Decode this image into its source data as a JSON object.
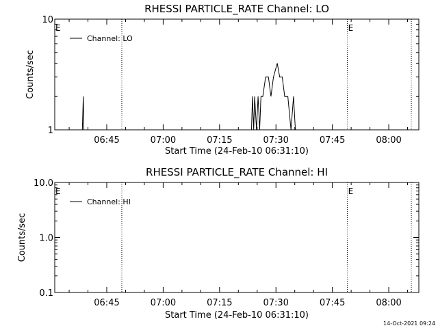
{
  "footer_timestamp": "14-Oct-2021 09:24",
  "colors": {
    "background": "#ffffff",
    "foreground": "#000000"
  },
  "chart_data": [
    {
      "type": "line",
      "title": "RHESSI PARTICLE_RATE Channel: LO",
      "xlabel": "Start Time (24-Feb-10 06:31:10)",
      "ylabel": "Counts/sec",
      "y_scale": "log",
      "ylim": [
        1,
        10
      ],
      "y_ticks": [
        1,
        10
      ],
      "y_tick_labels": [
        "1",
        "10"
      ],
      "x_range": [
        "06:31:10",
        "08:08:00"
      ],
      "x_ticks": [
        "06:45",
        "07:00",
        "07:15",
        "07:30",
        "07:45",
        "08:00"
      ],
      "legend": {
        "entries": [
          "Channel: LO"
        ],
        "position": "top-left"
      },
      "markers": [
        {
          "label": "E",
          "time": "06:31:10",
          "style": "text"
        },
        {
          "label": "",
          "time": "06:49:00",
          "style": "dotted"
        },
        {
          "label": "E",
          "time": "07:49:00",
          "style": "dotted"
        },
        {
          "label": "",
          "time": "08:06:00",
          "style": "dotted"
        }
      ],
      "series": [
        {
          "name": "Channel: LO",
          "x": [
            "06:38:30",
            "06:38:45",
            "06:38:55",
            "06:39:10",
            "07:23:30",
            "07:23:45",
            "07:24:05",
            "07:24:20",
            "07:24:50",
            "07:25:15",
            "07:25:40",
            "07:26:00",
            "07:26:30",
            "07:27:15",
            "07:28:00",
            "07:28:40",
            "07:29:20",
            "07:30:20",
            "07:31:00",
            "07:31:40",
            "07:32:20",
            "07:33:10",
            "07:34:00",
            "07:34:40",
            "07:35:10",
            "07:35:25"
          ],
          "y": [
            1,
            2,
            1,
            1,
            1,
            2,
            1,
            2,
            1,
            2,
            1,
            2,
            2,
            3,
            3,
            2,
            3,
            4,
            3,
            3,
            2,
            2,
            1,
            2,
            1,
            1
          ]
        }
      ]
    },
    {
      "type": "line",
      "title": "RHESSI PARTICLE_RATE Channel: HI",
      "xlabel": "Start Time (24-Feb-10 06:31:10)",
      "ylabel": "Counts/sec",
      "y_scale": "log",
      "ylim": [
        0.1,
        10
      ],
      "y_ticks": [
        0.1,
        1,
        10
      ],
      "y_tick_labels": [
        "0.1",
        "1.0",
        "10.0"
      ],
      "x_range": [
        "06:31:10",
        "08:08:00"
      ],
      "x_ticks": [
        "06:45",
        "07:00",
        "07:15",
        "07:30",
        "07:45",
        "08:00"
      ],
      "legend": {
        "entries": [
          "Channel: HI"
        ],
        "position": "top-left"
      },
      "markers": [
        {
          "label": "E",
          "time": "06:31:10",
          "style": "text"
        },
        {
          "label": "",
          "time": "06:49:00",
          "style": "dotted"
        },
        {
          "label": "E",
          "time": "07:49:00",
          "style": "dotted"
        },
        {
          "label": "",
          "time": "08:06:00",
          "style": "dotted"
        }
      ],
      "series": [
        {
          "name": "Channel: HI",
          "x": [],
          "y": []
        }
      ]
    }
  ]
}
